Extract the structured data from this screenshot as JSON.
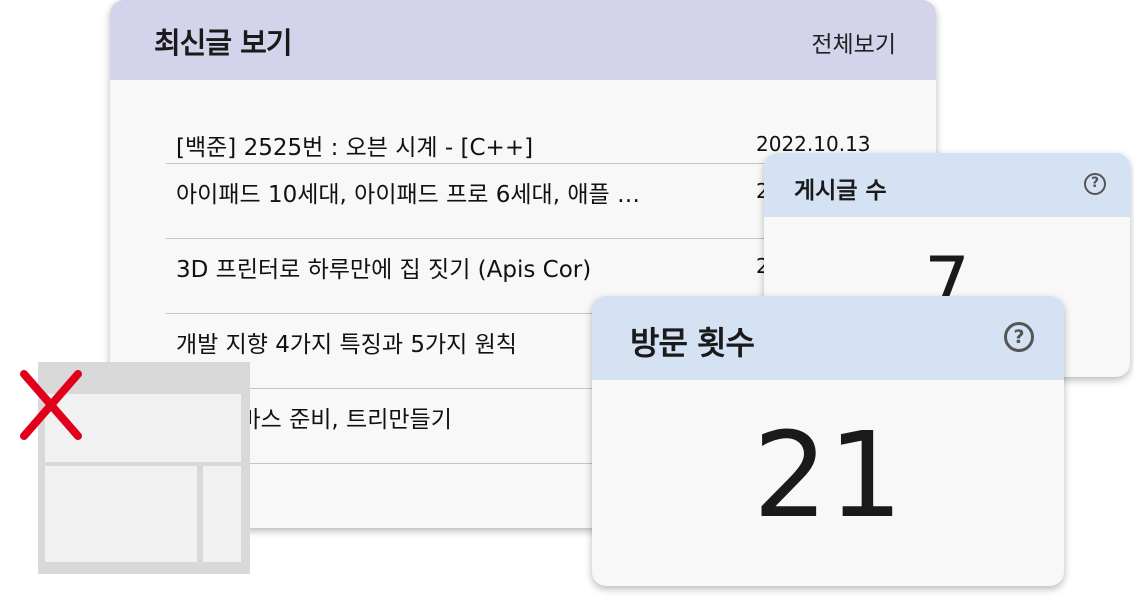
{
  "recent_posts": {
    "title": "최신글 보기",
    "view_all_label": "전체보기",
    "posts": [
      {
        "title": "[백준] 2525번 : 오븐 시계 - [C++]",
        "date": "2022.10.13"
      },
      {
        "title": "아이패드 10세대, 아이패드 프로 6세대, 애플 …",
        "date": "2"
      },
      {
        "title": "3D 프린터로 하루만에 집 짓기 (Apis Cor)",
        "date": "2"
      },
      {
        "title": "개발 지향 4가지 특징과 5가지 원칙",
        "date": ""
      },
      {
        "title": "크리스마스 준비, 트리만들기",
        "date": ""
      }
    ]
  },
  "post_count": {
    "title": "게시글 수",
    "value": "7",
    "help_icon": "question-circle-icon"
  },
  "visit_count": {
    "title": "방문 횟수",
    "value": "21",
    "help_icon": "question-circle-icon"
  },
  "overlay": {
    "close_icon": "red-x-icon",
    "close_color": "#e0001b",
    "wireframe": "layout-wireframe-thumbnail"
  },
  "colors": {
    "recent_header": "#d3d3eb",
    "stat_header": "#d4e2f4",
    "card_bg": "#f8f8f8"
  }
}
